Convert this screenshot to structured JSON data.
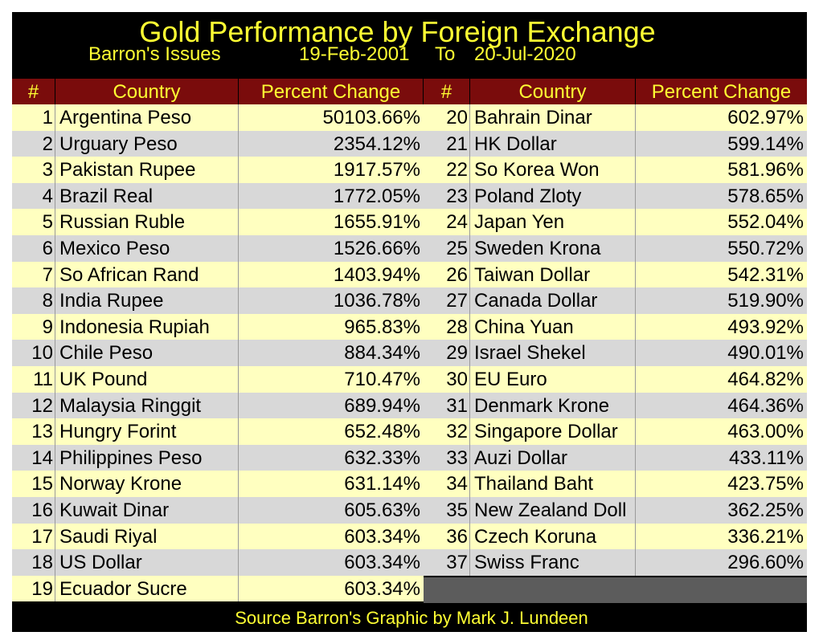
{
  "chart_data": {
    "type": "table",
    "title": "Gold Performance by Foreign Exchange",
    "subtitle_left": "Barron's Issues",
    "date_from": "19-Feb-2001",
    "date_to_word": "To",
    "date_to": "20-Jul-2020",
    "columns": [
      "#",
      "Country",
      "Percent Change"
    ],
    "rows": [
      {
        "n": "1",
        "country": "Argentina Peso",
        "pct": "50103.66%"
      },
      {
        "n": "2",
        "country": "Urguary Peso",
        "pct": "2354.12%"
      },
      {
        "n": "3",
        "country": "Pakistan Rupee",
        "pct": "1917.57%"
      },
      {
        "n": "4",
        "country": "Brazil Real",
        "pct": "1772.05%"
      },
      {
        "n": "5",
        "country": "Russian Ruble",
        "pct": "1655.91%"
      },
      {
        "n": "6",
        "country": "Mexico Peso",
        "pct": "1526.66%"
      },
      {
        "n": "7",
        "country": "So African Rand",
        "pct": "1403.94%"
      },
      {
        "n": "8",
        "country": "India Rupee",
        "pct": "1036.78%"
      },
      {
        "n": "9",
        "country": "Indonesia Rupiah",
        "pct": "965.83%"
      },
      {
        "n": "10",
        "country": "Chile Peso",
        "pct": "884.34%"
      },
      {
        "n": "11",
        "country": "UK Pound",
        "pct": "710.47%"
      },
      {
        "n": "12",
        "country": "Malaysia Ringgit",
        "pct": "689.94%"
      },
      {
        "n": "13",
        "country": "Hungry Forint",
        "pct": "652.48%"
      },
      {
        "n": "14",
        "country": "Philippines Peso",
        "pct": "632.33%"
      },
      {
        "n": "15",
        "country": "Norway Krone",
        "pct": "631.14%"
      },
      {
        "n": "16",
        "country": "Kuwait Dinar",
        "pct": "605.63%"
      },
      {
        "n": "17",
        "country": "Saudi Riyal",
        "pct": "603.34%"
      },
      {
        "n": "18",
        "country": "US Dollar",
        "pct": "603.34%"
      },
      {
        "n": "19",
        "country": "Ecuador Sucre",
        "pct": "603.34%"
      },
      {
        "n": "20",
        "country": "Bahrain Dinar",
        "pct": "602.97%"
      },
      {
        "n": "21",
        "country": "HK Dollar",
        "pct": "599.14%"
      },
      {
        "n": "22",
        "country": "So Korea Won",
        "pct": "581.96%"
      },
      {
        "n": "23",
        "country": "Poland Zloty",
        "pct": "578.65%"
      },
      {
        "n": "24",
        "country": "Japan Yen",
        "pct": "552.04%"
      },
      {
        "n": "25",
        "country": "Sweden Krona",
        "pct": "550.72%"
      },
      {
        "n": "26",
        "country": "Taiwan Dollar",
        "pct": "542.31%"
      },
      {
        "n": "27",
        "country": "Canada Dollar",
        "pct": "519.90%"
      },
      {
        "n": "28",
        "country": "China Yuan",
        "pct": "493.92%"
      },
      {
        "n": "29",
        "country": "Israel Shekel",
        "pct": "490.01%"
      },
      {
        "n": "30",
        "country": "EU Euro",
        "pct": "464.82%"
      },
      {
        "n": "31",
        "country": "Denmark Krone",
        "pct": "464.36%"
      },
      {
        "n": "32",
        "country": "Singapore Dollar",
        "pct": "463.00%"
      },
      {
        "n": "33",
        "country": "Auzi Dollar",
        "pct": "433.11%"
      },
      {
        "n": "34",
        "country": "Thailand Baht",
        "pct": "423.75%"
      },
      {
        "n": "35",
        "country": "New Zealand Doll",
        "pct": "362.25%"
      },
      {
        "n": "36",
        "country": "Czech Koruna",
        "pct": "336.21%"
      },
      {
        "n": "37",
        "country": "Swiss Franc",
        "pct": "296.60%"
      }
    ],
    "source": "Source Barron's   Graphic by Mark J. Lundeen",
    "colors": {
      "background": "#000000",
      "title_text": "#ffff33",
      "header_fill": "#7a0c0c",
      "row_yellow": "#ffffc0",
      "row_gray": "#d8d8d8",
      "empty_block": "#5c5c5c"
    }
  }
}
